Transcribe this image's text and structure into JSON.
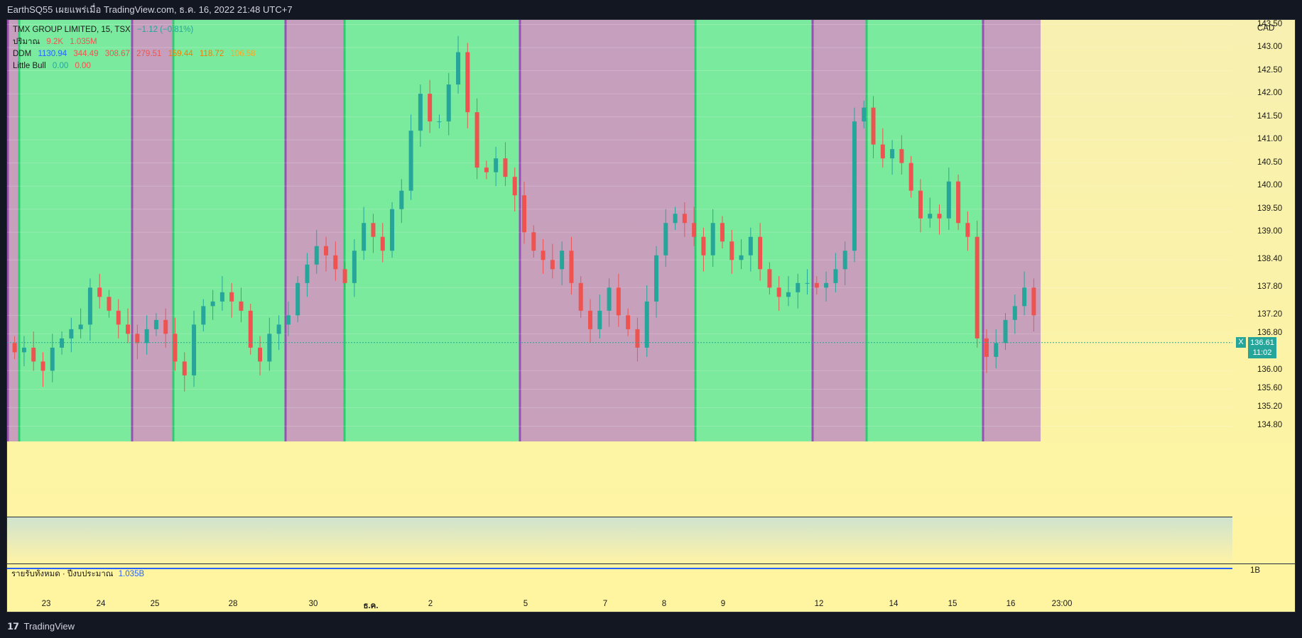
{
  "window": {
    "title": "EarthSQ55 เผยแพร่เมื่อ TradingView.com, ธ.ค. 16, 2022 21:48 UTC+7"
  },
  "legend": {
    "symbol": "TMX GROUP LIMITED, 15, TSX",
    "change": "−1.12 (−0.81%)",
    "volume_label": "ปริมาณ",
    "volume_values": [
      "9.2K",
      "1.035M"
    ],
    "ddm_label": "DDM",
    "ddm_values": [
      "1130.94",
      "344.49",
      "308.67",
      "279.51",
      "159.44",
      "118.72",
      "106.58"
    ],
    "little_bull_label": "Little Bull",
    "little_bull_values": [
      "0.00",
      "0.00"
    ]
  },
  "colors": {
    "up": "#26a69a",
    "down": "#ef5350",
    "bull_zone": "#5ee89a",
    "bear_zone": "#b080c0",
    "accent": "#26a69a",
    "line_blue": "#2962ff"
  },
  "price_scale": {
    "currency": "CAD",
    "ticks": [
      "143.50",
      "143.00",
      "142.50",
      "142.00",
      "141.50",
      "141.00",
      "140.50",
      "140.00",
      "139.50",
      "139.00",
      "138.40",
      "137.80",
      "137.20",
      "136.80",
      "136.00",
      "135.60",
      "135.20",
      "134.80"
    ],
    "current_price": "136.61",
    "countdown": "11:02",
    "current_marker": "X"
  },
  "revenue_panel": {
    "label": "รายรับทั้งหมด · ปีงบประมาณ",
    "value": "1.035B",
    "axis_tick": "1B"
  },
  "time_axis": {
    "labels": [
      "23",
      "24",
      "25",
      "28",
      "30",
      "ธ.ค.",
      "2",
      "5",
      "7",
      "8",
      "9",
      "12",
      "14",
      "15",
      "16",
      "23:00"
    ]
  },
  "chart_data": {
    "type": "candlestick",
    "zones": [
      {
        "kind": "bear",
        "from_label": "",
        "to_label": ""
      },
      {
        "kind": "bull",
        "from_label": "23",
        "to_label": "25"
      },
      {
        "kind": "bear",
        "from_label": "25",
        "to_label": "25"
      },
      {
        "kind": "bull",
        "from_label": "25",
        "to_label": "30"
      },
      {
        "kind": "bear",
        "from_label": "30",
        "to_label": "ธ.ค."
      },
      {
        "kind": "bull",
        "from_label": "ธ.ค.",
        "to_label": "5"
      },
      {
        "kind": "bear",
        "from_label": "5",
        "to_label": "9"
      },
      {
        "kind": "bull",
        "from_label": "9",
        "to_label": "12"
      },
      {
        "kind": "bear",
        "from_label": "12",
        "to_label": "14"
      },
      {
        "kind": "bull",
        "from_label": "14",
        "to_label": "16"
      },
      {
        "kind": "bear",
        "from_label": "16",
        "to_label": "23:00"
      }
    ],
    "closes": [
      136.4,
      136.5,
      136.2,
      136.0,
      136.5,
      136.7,
      136.9,
      137.0,
      137.8,
      137.6,
      137.3,
      137.0,
      136.8,
      136.6,
      136.9,
      137.1,
      136.8,
      136.2,
      135.9,
      137.0,
      137.4,
      137.5,
      137.7,
      137.5,
      137.3,
      136.5,
      136.2,
      136.8,
      137.0,
      137.2,
      137.9,
      138.3,
      138.7,
      138.5,
      138.2,
      137.9,
      138.6,
      139.2,
      138.9,
      138.6,
      139.5,
      139.9,
      141.2,
      142.0,
      141.4,
      141.4,
      142.2,
      142.9,
      141.6,
      140.4,
      140.3,
      140.6,
      140.2,
      139.8,
      139.0,
      138.6,
      138.4,
      138.2,
      138.6,
      137.9,
      137.3,
      136.9,
      137.3,
      137.8,
      137.2,
      136.9,
      136.5,
      137.5,
      138.5,
      139.2,
      139.4,
      139.2,
      138.9,
      138.5,
      139.2,
      138.8,
      138.4,
      138.5,
      138.9,
      138.2,
      137.8,
      137.6,
      137.7,
      137.9,
      137.9,
      137.8,
      137.9,
      138.2,
      138.6,
      141.4,
      141.7,
      140.9,
      140.6,
      140.8,
      140.5,
      139.9,
      139.3,
      139.4,
      139.3,
      140.1,
      139.2,
      138.9,
      136.7,
      136.3,
      136.6,
      137.1,
      137.4,
      137.8,
      137.2
    ],
    "ylim": [
      134.5,
      143.6
    ]
  }
}
